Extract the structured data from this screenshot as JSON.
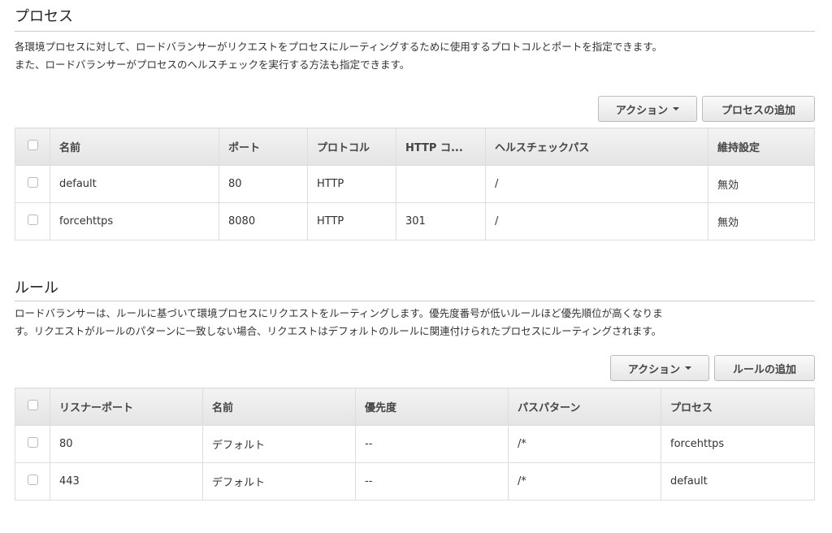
{
  "processes": {
    "title": "プロセス",
    "description": [
      "各環境プロセスに対して、ロードバランサーがリクエストをプロセスにルーティングするために使用するプロトコルとポートを指定できます。",
      "また、ロードバランサーがプロセスのヘルスチェックを実行する方法も指定できます。"
    ],
    "actions_label": "アクション",
    "add_label": "プロセスの追加",
    "columns": [
      "名前",
      "ポート",
      "プロトコル",
      "HTTP コ...",
      "ヘルスチェックパス",
      "維持設定"
    ],
    "rows": [
      [
        "default",
        "80",
        "HTTP",
        "",
        "/",
        "無効"
      ],
      [
        "forcehttps",
        "8080",
        "HTTP",
        "301",
        "/",
        "無効"
      ]
    ]
  },
  "rules": {
    "title": "ルール",
    "description": [
      "ロードバランサーは、ルールに基づいて環境プロセスにリクエストをルーティングします。優先度番号が低いルールほど優先順位が高くなりま",
      "す。リクエストがルールのパターンに一致しない場合、リクエストはデフォルトのルールに関連付けられたプロセスにルーティングされます。"
    ],
    "actions_label": "アクション",
    "add_label": "ルールの追加",
    "columns": [
      "リスナーポート",
      "名前",
      "優先度",
      "パスパターン",
      "プロセス"
    ],
    "rows": [
      [
        "80",
        "デフォルト",
        "--",
        "/*",
        "forcehttps"
      ],
      [
        "443",
        "デフォルト",
        "--",
        "/*",
        "default"
      ]
    ]
  }
}
